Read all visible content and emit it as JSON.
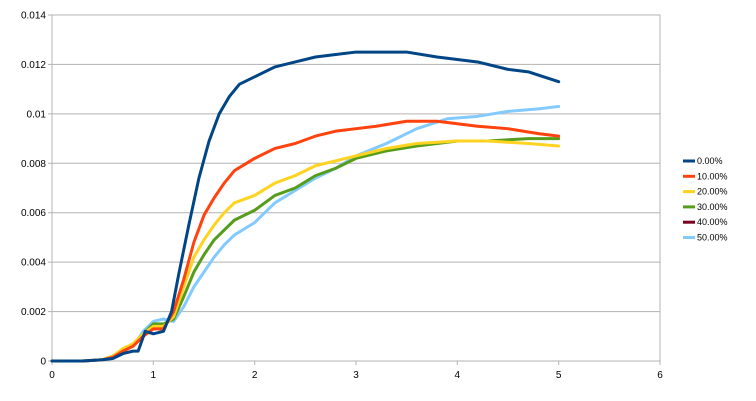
{
  "chart_data": {
    "type": "line",
    "title": "",
    "xlabel": "",
    "ylabel": "",
    "xlim": [
      0,
      6
    ],
    "ylim": [
      0,
      0.014
    ],
    "x_ticks": [
      "0",
      "1",
      "2",
      "3",
      "4",
      "5",
      "6"
    ],
    "y_ticks": [
      "0",
      "0.002",
      "0.004",
      "0.006",
      "0.008",
      "0.01",
      "0.012",
      "0.014"
    ],
    "grid": "horizontal",
    "legend_position": "right",
    "series": [
      {
        "name": "0.00%",
        "color": "#004586",
        "points": [
          [
            0,
            0
          ],
          [
            0.3,
            0
          ],
          [
            0.5,
            5e-05
          ],
          [
            0.6,
            0.0001
          ],
          [
            0.7,
            0.0003
          ],
          [
            0.8,
            0.0004
          ],
          [
            0.85,
            0.0004
          ],
          [
            0.92,
            0.0012
          ],
          [
            1.0,
            0.0011
          ],
          [
            1.1,
            0.0012
          ],
          [
            1.18,
            0.002
          ],
          [
            1.25,
            0.0035
          ],
          [
            1.35,
            0.0055
          ],
          [
            1.45,
            0.0074
          ],
          [
            1.55,
            0.0089
          ],
          [
            1.65,
            0.01
          ],
          [
            1.75,
            0.0107
          ],
          [
            1.85,
            0.0112
          ],
          [
            2.0,
            0.0115
          ],
          [
            2.2,
            0.0119
          ],
          [
            2.4,
            0.0121
          ],
          [
            2.6,
            0.0123
          ],
          [
            2.8,
            0.0124
          ],
          [
            3.0,
            0.0125
          ],
          [
            3.2,
            0.0125
          ],
          [
            3.5,
            0.0125
          ],
          [
            3.8,
            0.0123
          ],
          [
            4.0,
            0.0122
          ],
          [
            4.2,
            0.0121
          ],
          [
            4.5,
            0.0118
          ],
          [
            4.7,
            0.0117
          ],
          [
            5.0,
            0.0113
          ]
        ]
      },
      {
        "name": "10.00%",
        "color": "#FF420E",
        "points": [
          [
            0,
            0
          ],
          [
            0.3,
            0
          ],
          [
            0.5,
            5e-05
          ],
          [
            0.6,
            0.00015
          ],
          [
            0.7,
            0.0004
          ],
          [
            0.8,
            0.0006
          ],
          [
            0.9,
            0.001
          ],
          [
            1.0,
            0.0013
          ],
          [
            1.1,
            0.0013
          ],
          [
            1.2,
            0.002
          ],
          [
            1.3,
            0.0033
          ],
          [
            1.4,
            0.0048
          ],
          [
            1.5,
            0.0059
          ],
          [
            1.6,
            0.0066
          ],
          [
            1.7,
            0.0072
          ],
          [
            1.8,
            0.0077
          ],
          [
            2.0,
            0.0082
          ],
          [
            2.2,
            0.0086
          ],
          [
            2.4,
            0.0088
          ],
          [
            2.6,
            0.0091
          ],
          [
            2.8,
            0.0093
          ],
          [
            3.0,
            0.0094
          ],
          [
            3.2,
            0.0095
          ],
          [
            3.5,
            0.0097
          ],
          [
            3.8,
            0.0097
          ],
          [
            4.0,
            0.0096
          ],
          [
            4.2,
            0.0095
          ],
          [
            4.5,
            0.0094
          ],
          [
            4.8,
            0.0092
          ],
          [
            5.0,
            0.0091
          ]
        ]
      },
      {
        "name": "20.00%",
        "color": "#FFD320",
        "points": [
          [
            0,
            0
          ],
          [
            0.3,
            0
          ],
          [
            0.5,
            5e-05
          ],
          [
            0.6,
            0.0002
          ],
          [
            0.7,
            0.0005
          ],
          [
            0.8,
            0.0007
          ],
          [
            0.9,
            0.0011
          ],
          [
            1.0,
            0.0014
          ],
          [
            1.1,
            0.0014
          ],
          [
            1.2,
            0.0018
          ],
          [
            1.3,
            0.003
          ],
          [
            1.4,
            0.0042
          ],
          [
            1.5,
            0.0049
          ],
          [
            1.6,
            0.0055
          ],
          [
            1.7,
            0.006
          ],
          [
            1.8,
            0.0064
          ],
          [
            2.0,
            0.0067
          ],
          [
            2.2,
            0.0072
          ],
          [
            2.4,
            0.0075
          ],
          [
            2.6,
            0.0079
          ],
          [
            2.8,
            0.0081
          ],
          [
            3.0,
            0.0083
          ],
          [
            3.3,
            0.0086
          ],
          [
            3.6,
            0.0088
          ],
          [
            4.0,
            0.0089
          ],
          [
            4.3,
            0.0089
          ],
          [
            4.7,
            0.0088
          ],
          [
            5.0,
            0.0087
          ]
        ]
      },
      {
        "name": "30.00%",
        "color": "#579D1C",
        "points": [
          [
            0,
            0
          ],
          [
            0.3,
            0
          ],
          [
            0.5,
            5e-05
          ],
          [
            0.6,
            0.0002
          ],
          [
            0.7,
            0.0004
          ],
          [
            0.8,
            0.0006
          ],
          [
            0.9,
            0.0011
          ],
          [
            1.0,
            0.0015
          ],
          [
            1.1,
            0.0015
          ],
          [
            1.2,
            0.0017
          ],
          [
            1.3,
            0.0026
          ],
          [
            1.4,
            0.0036
          ],
          [
            1.5,
            0.0043
          ],
          [
            1.6,
            0.0049
          ],
          [
            1.7,
            0.0053
          ],
          [
            1.8,
            0.0057
          ],
          [
            2.0,
            0.0061
          ],
          [
            2.2,
            0.0067
          ],
          [
            2.4,
            0.007
          ],
          [
            2.6,
            0.0075
          ],
          [
            2.8,
            0.0078
          ],
          [
            3.0,
            0.0082
          ],
          [
            3.3,
            0.0085
          ],
          [
            3.6,
            0.0087
          ],
          [
            4.0,
            0.0089
          ],
          [
            4.3,
            0.0089
          ],
          [
            4.7,
            0.009
          ],
          [
            5.0,
            0.009
          ]
        ]
      },
      {
        "name": "40.00%",
        "color": "#7E0021",
        "points": []
      },
      {
        "name": "50.00%",
        "color": "#83CAFF",
        "points": [
          [
            0,
            0
          ],
          [
            0.3,
            0
          ],
          [
            0.5,
            5e-05
          ],
          [
            0.6,
            0.00015
          ],
          [
            0.7,
            0.0004
          ],
          [
            0.8,
            0.0006
          ],
          [
            0.9,
            0.0012
          ],
          [
            1.0,
            0.0016
          ],
          [
            1.1,
            0.0017
          ],
          [
            1.2,
            0.0016
          ],
          [
            1.3,
            0.0022
          ],
          [
            1.4,
            0.003
          ],
          [
            1.5,
            0.0036
          ],
          [
            1.6,
            0.0042
          ],
          [
            1.7,
            0.0047
          ],
          [
            1.8,
            0.0051
          ],
          [
            2.0,
            0.0056
          ],
          [
            2.2,
            0.0064
          ],
          [
            2.4,
            0.0069
          ],
          [
            2.6,
            0.0074
          ],
          [
            2.8,
            0.0078
          ],
          [
            3.0,
            0.0083
          ],
          [
            3.3,
            0.0088
          ],
          [
            3.6,
            0.0094
          ],
          [
            3.9,
            0.0098
          ],
          [
            4.2,
            0.0099
          ],
          [
            4.5,
            0.0101
          ],
          [
            4.8,
            0.0102
          ],
          [
            5.0,
            0.0103
          ]
        ]
      }
    ]
  }
}
